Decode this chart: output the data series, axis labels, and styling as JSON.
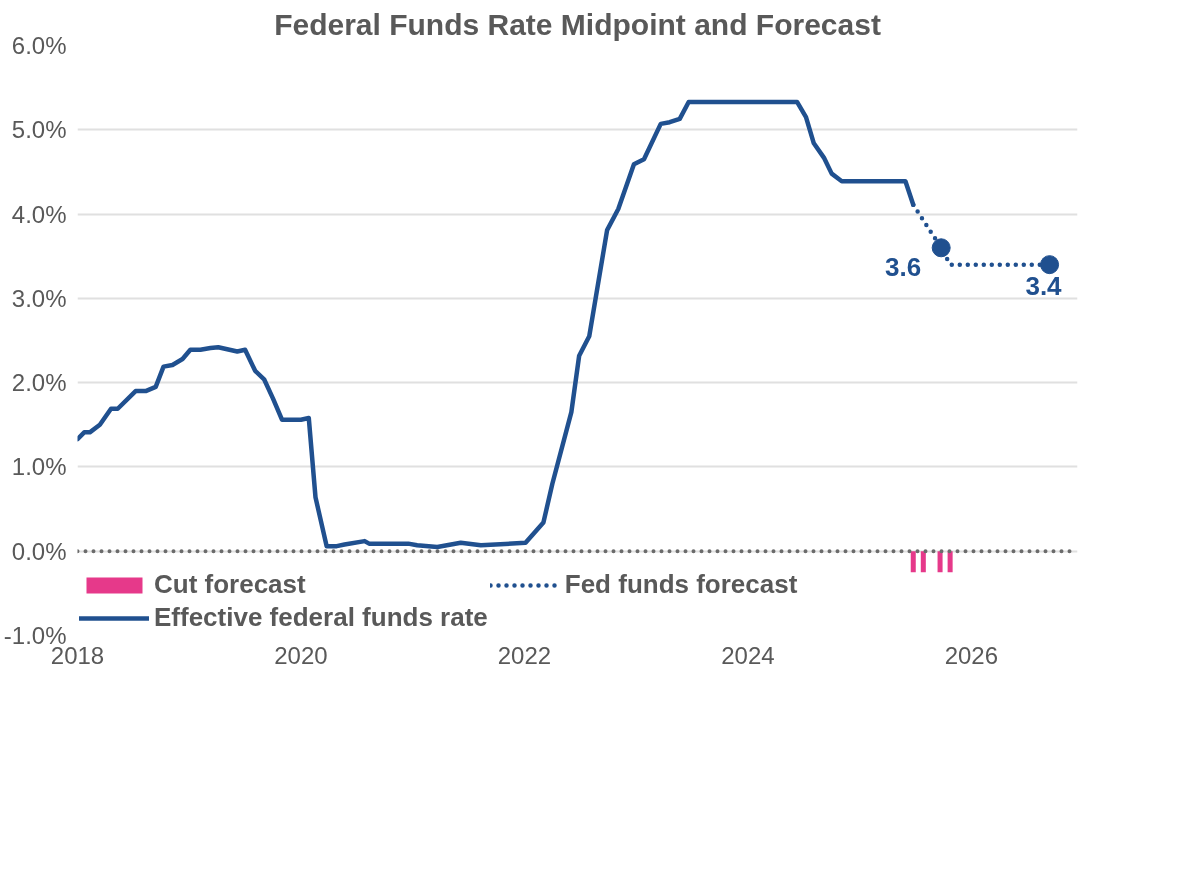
{
  "chart_data": {
    "type": "line",
    "title": "Federal Funds Rate Midpoint and Forecast",
    "xlim": [
      2018,
      2026.95
    ],
    "xticks": [
      2018,
      2020,
      2022,
      2024,
      2026
    ],
    "ylim": [
      -1,
      6
    ],
    "yticks": [
      {
        "value": -1,
        "label": "-1.0%"
      },
      {
        "value": 0,
        "label": "0.0%"
      },
      {
        "value": 1,
        "label": "1.0%"
      },
      {
        "value": 2,
        "label": "2.0%"
      },
      {
        "value": 3,
        "label": "3.0%"
      },
      {
        "value": 4,
        "label": "4.0%"
      },
      {
        "value": 5,
        "label": "5.0%"
      },
      {
        "value": 6,
        "label": "6.0%"
      }
    ],
    "grid": "y",
    "legend": "bottom",
    "ref_lines": [
      {
        "axis": "y",
        "value": 0,
        "color": "#6b6b6b",
        "line_style": "dotted"
      }
    ],
    "annotations": [
      {
        "text": "3.6",
        "x": 2025.73,
        "y": 3.6
      },
      {
        "text": "3.4",
        "x": 2026.7,
        "y": 3.4
      }
    ],
    "series": [
      {
        "name": "Cut forecast",
        "type": "bar",
        "color": "#e6398a",
        "x": [
          2025.48,
          2025.57,
          2025.72,
          2025.81
        ],
        "values": [
          -0.25,
          -0.25,
          -0.25,
          -0.25
        ]
      },
      {
        "name": "Effective federal funds rate",
        "line_style": "solid",
        "color": "#20508f",
        "x": [
          2018.0,
          2018.06,
          2018.11,
          2018.2,
          2018.3,
          2018.36,
          2018.52,
          2018.61,
          2018.7,
          2018.77,
          2018.85,
          2018.94,
          2019.01,
          2019.1,
          2019.19,
          2019.26,
          2019.43,
          2019.5,
          2019.59,
          2019.67,
          2019.75,
          2019.83,
          2020.0,
          2020.07,
          2020.13,
          2020.23,
          2020.32,
          2020.39,
          2020.57,
          2020.61,
          2020.96,
          2021.04,
          2021.22,
          2021.43,
          2021.61,
          2022.01,
          2022.17,
          2022.25,
          2022.42,
          2022.49,
          2022.58,
          2022.74,
          2022.84,
          2022.98,
          2023.07,
          2023.22,
          2023.3,
          2023.39,
          2023.47,
          2024.44,
          2024.52,
          2024.59,
          2024.68,
          2024.75,
          2024.84,
          2025.41,
          2025.48
        ],
        "values": [
          1.33,
          1.41,
          1.41,
          1.5,
          1.69,
          1.69,
          1.9,
          1.9,
          1.95,
          2.19,
          2.21,
          2.28,
          2.39,
          2.39,
          2.41,
          2.42,
          2.37,
          2.39,
          2.14,
          2.04,
          1.81,
          1.56,
          1.56,
          1.58,
          0.64,
          0.06,
          0.06,
          0.08,
          0.12,
          0.09,
          0.09,
          0.07,
          0.05,
          0.1,
          0.07,
          0.1,
          0.34,
          0.8,
          1.65,
          2.32,
          2.55,
          3.81,
          4.06,
          4.59,
          4.65,
          5.07,
          5.09,
          5.13,
          5.33,
          5.33,
          5.15,
          4.84,
          4.67,
          4.48,
          4.39,
          4.39,
          4.11
        ]
      },
      {
        "name": "Fed funds forecast",
        "line_style": "dotted",
        "color": "#20508f",
        "x": [
          2025.48,
          2025.73,
          2025.81,
          2026.7
        ],
        "values": [
          4.11,
          3.6,
          3.4,
          3.4
        ]
      }
    ]
  }
}
